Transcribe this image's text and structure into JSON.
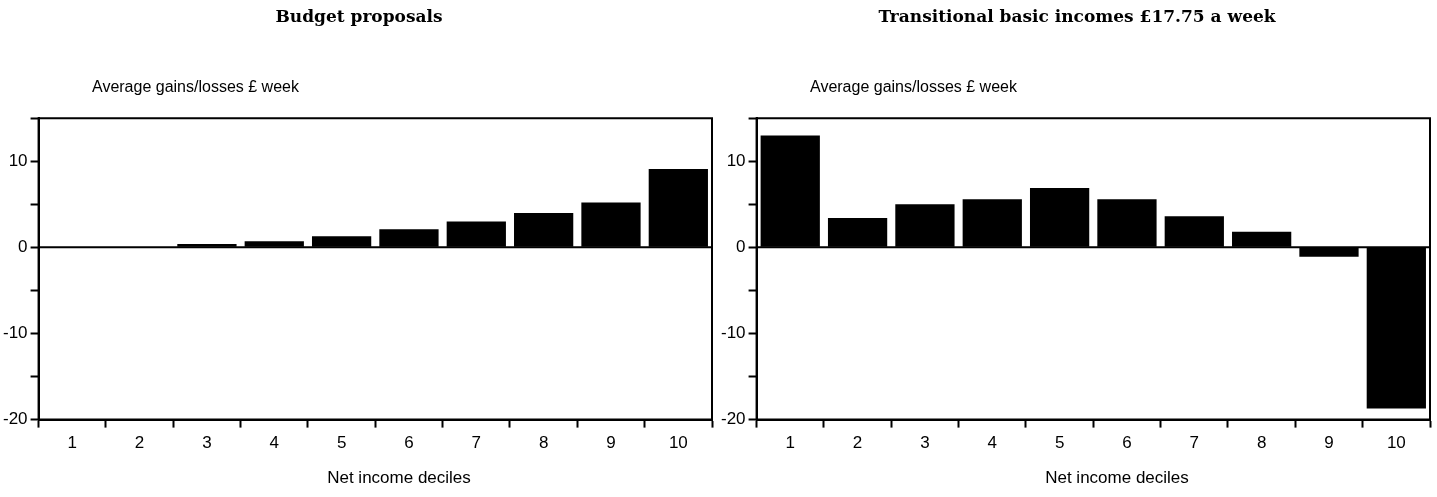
{
  "chart_data": [
    {
      "type": "bar",
      "title": "Budget proposals",
      "ylabel": "Average gains/losses £ week",
      "xlabel": "Net income deciles",
      "categories": [
        "1",
        "2",
        "3",
        "4",
        "5",
        "6",
        "7",
        "8",
        "9",
        "10"
      ],
      "values": [
        0,
        0,
        0.4,
        0.7,
        1.3,
        2.1,
        3.0,
        4.0,
        5.2,
        9.1
      ],
      "color": "#000000",
      "ylim": [
        -20,
        15
      ],
      "yticks": [
        -20,
        {
          "value": -15,
          "label": null
        },
        -10,
        {
          "value": -5,
          "label": null
        },
        0,
        {
          "value": 5,
          "label": null
        },
        10,
        {
          "value": 15,
          "label": null
        }
      ],
      "grid": false,
      "legend": false,
      "ref_lines": [
        {
          "axis": "y",
          "value": 0,
          "label": null,
          "color": "#000000"
        }
      ]
    },
    {
      "type": "bar",
      "title": "Transitional basic incomes £17.75 a week",
      "ylabel": "Average gains/losses £ week",
      "xlabel": "Net income deciles",
      "categories": [
        "1",
        "2",
        "3",
        "4",
        "5",
        "6",
        "7",
        "8",
        "9",
        "10"
      ],
      "values": [
        13.0,
        3.4,
        5.0,
        5.6,
        6.9,
        5.6,
        3.6,
        1.8,
        -1.1,
        -18.7
      ],
      "color": "#000000",
      "ylim": [
        -20,
        15
      ],
      "yticks": [
        -20,
        {
          "value": -15,
          "label": null
        },
        -10,
        {
          "value": -5,
          "label": null
        },
        0,
        {
          "value": 5,
          "label": null
        },
        10,
        {
          "value": 15,
          "label": null
        }
      ],
      "grid": false,
      "legend": false,
      "ref_lines": [
        {
          "axis": "y",
          "value": 0,
          "label": null,
          "color": "#000000"
        }
      ]
    }
  ]
}
